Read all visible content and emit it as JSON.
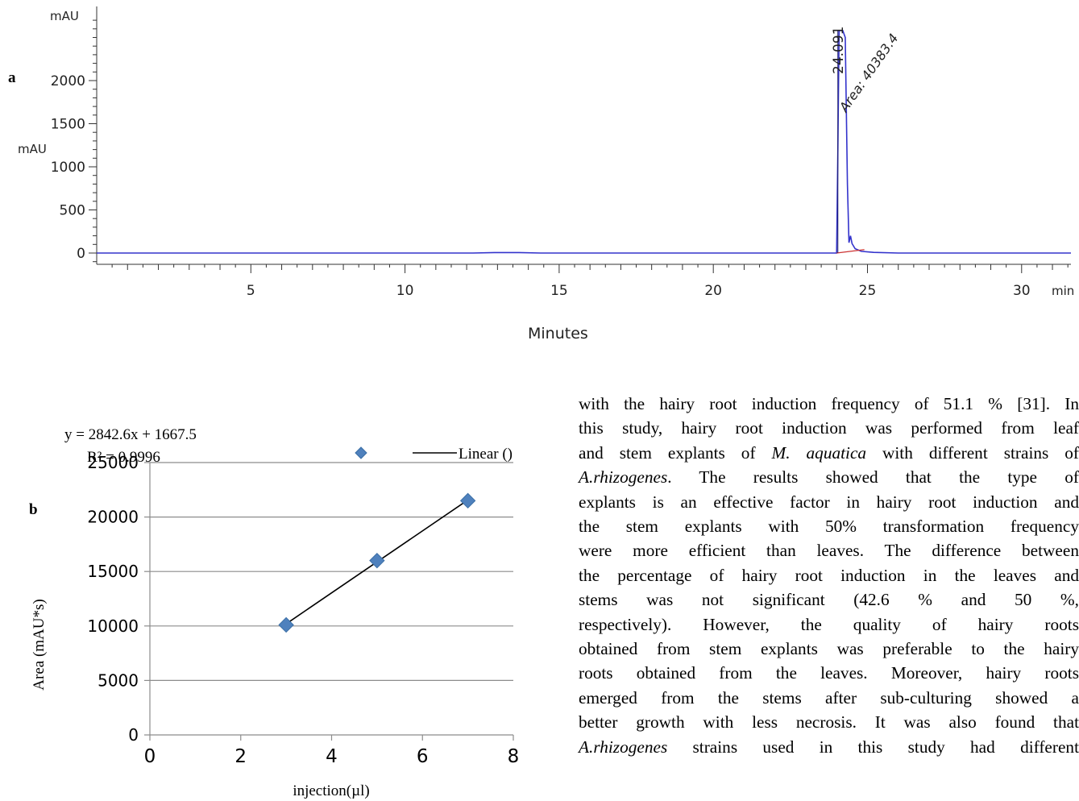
{
  "panel_a": {
    "label": "a",
    "chart_data": {
      "type": "line",
      "xlabel": "Minutes",
      "ylabel": "mAU",
      "y_unit_top": "mAU",
      "x_unit": "min",
      "xlim": [
        0,
        31.6
      ],
      "ylim": [
        -100,
        2700
      ],
      "x_ticks": [
        5,
        10,
        15,
        20,
        25,
        30
      ],
      "y_ticks": [
        0,
        500,
        1000,
        1500,
        2000
      ],
      "series": [
        {
          "color": "#3333cc",
          "x": [
            0,
            6.9,
            8.0,
            12.2,
            12.9,
            13.7,
            14.4,
            22.9,
            23.9,
            24.0,
            24.04,
            24.08,
            24.2,
            24.28,
            24.35,
            24.4,
            24.45,
            24.5,
            24.6,
            24.8,
            25.2,
            26.0,
            31.6
          ],
          "y": [
            0,
            0,
            0,
            0,
            5,
            5,
            0,
            0,
            0,
            0,
            1200,
            2580,
            2580,
            2500,
            800,
            120,
            200,
            110,
            50,
            20,
            8,
            0,
            0
          ]
        }
      ],
      "baseline": {
        "color": "#cc3333",
        "x": [
          24.0,
          24.9
        ],
        "y": [
          0,
          40
        ]
      },
      "peak_annotations": [
        {
          "retention_label": "24.091",
          "area_label": "Area: 40383.4",
          "x": 24.091
        }
      ],
      "grid": false
    }
  },
  "panel_b": {
    "label": "b",
    "equation": "y = 2842.6x + 1667.5",
    "r_squared": "R² = 0.9996",
    "legend_linear": "Linear ()",
    "chart_data": {
      "type": "scatter",
      "xlabel": "injection(µl)",
      "ylabel": "Area (mAU*s)",
      "xlim": [
        0,
        8
      ],
      "ylim": [
        0,
        25000
      ],
      "x_ticks": [
        0,
        2,
        4,
        6,
        8
      ],
      "y_ticks": [
        0,
        5000,
        10000,
        15000,
        20000,
        25000
      ],
      "points": {
        "x": [
          3,
          5,
          7
        ],
        "y": [
          10100,
          16000,
          21500
        ]
      },
      "trendline": {
        "slope": 2842.6,
        "intercept": 1667.5,
        "x_range": [
          3,
          7
        ]
      },
      "marker_color": "#4f81bd",
      "grid": true,
      "legend_position": "top-right"
    }
  },
  "body_text": {
    "lines": [
      "with the hairy root induction frequency of 51.1 % [31]. In",
      "this study, hairy root induction was performed from leaf",
      "and stem explants of |M. aquatica| with different strains of",
      "|A.rhizogenes|. The results showed that the type of",
      "explants is an effective factor in hairy root induction and",
      "the stem explants with 50% transformation frequency",
      "were more efficient than leaves. The difference between",
      "the percentage of hairy root induction in the leaves and",
      "stems was not significant (42.6 % and 50 %,",
      "respectively). However, the quality of hairy roots",
      "obtained from stem explants was preferable to the hairy",
      "roots obtained from the leaves. Moreover, hairy roots",
      "emerged from the stems after sub-culturing showed a",
      "better growth with less necrosis. It was also found that",
      "|A.rhizogenes| strains used in this study had different"
    ]
  }
}
